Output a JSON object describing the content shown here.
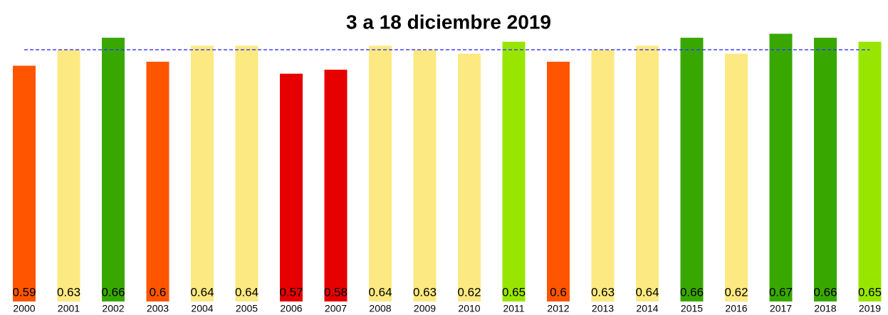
{
  "chart_data": {
    "type": "bar",
    "title": "3 a 18 diciembre 2019",
    "categories": [
      "2000",
      "2001",
      "2002",
      "2003",
      "2004",
      "2005",
      "2006",
      "2007",
      "2008",
      "2009",
      "2010",
      "2011",
      "2012",
      "2013",
      "2014",
      "2015",
      "2016",
      "2017",
      "2018",
      "2019"
    ],
    "values": [
      0.59,
      0.63,
      0.66,
      0.6,
      0.64,
      0.64,
      0.57,
      0.58,
      0.64,
      0.63,
      0.62,
      0.65,
      0.6,
      0.63,
      0.64,
      0.66,
      0.62,
      0.67,
      0.66,
      0.65
    ],
    "colors": [
      "#ff5500",
      "#fde981",
      "#38a800",
      "#ff5500",
      "#fde981",
      "#fde981",
      "#e60000",
      "#e60000",
      "#fde981",
      "#fde981",
      "#fde981",
      "#98e600",
      "#ff5500",
      "#fde981",
      "#fde981",
      "#38a800",
      "#fde981",
      "#38a800",
      "#38a800",
      "#98e600"
    ],
    "reference_line": 0.63,
    "reference_color": "#3333ff",
    "ylim": [
      0,
      0.7
    ]
  }
}
